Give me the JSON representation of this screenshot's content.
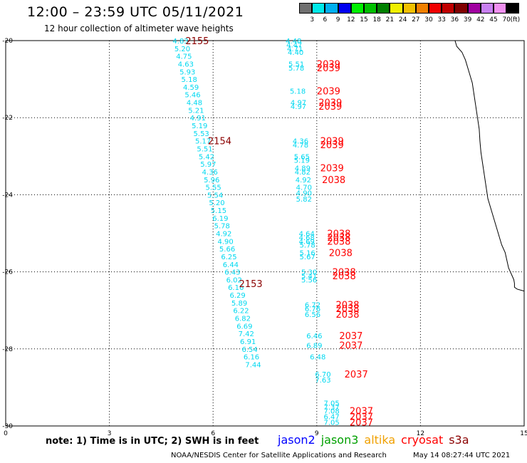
{
  "header": {
    "title": "12:00 – 23:59 UTC 05/11/2021",
    "subtitle": "12 hour collection of altimeter wave heights"
  },
  "colorbar": {
    "colors": [
      "#707070",
      "#00e8e8",
      "#00b0f0",
      "#0000f0",
      "#00f000",
      "#00c000",
      "#008000",
      "#f0f000",
      "#f0c000",
      "#f08000",
      "#f00000",
      "#c00000",
      "#800000",
      "#a000a0",
      "#c880f0",
      "#f090f0",
      "#000000"
    ],
    "labels": [
      "3",
      "6",
      "9",
      "12",
      "15",
      "18",
      "21",
      "24",
      "27",
      "30",
      "33",
      "36",
      "39",
      "42",
      "45",
      "70",
      "(ft)"
    ]
  },
  "footer": {
    "note": "note:  1) Time is in UTC;  2) SWH is in feet",
    "credit": "NOAA/NESDIS Center for Satellite Applications and Research",
    "timestamp": "May 14 08:27:44 UTC 2021"
  },
  "legend": [
    {
      "name": "jason2",
      "color": "#0000ff"
    },
    {
      "name": "jason3",
      "color": "#00a000"
    },
    {
      "name": "altika",
      "color": "#f0a000"
    },
    {
      "name": "cryosat",
      "color": "#ff0000"
    },
    {
      "name": "s3a",
      "color": "#8b0000"
    }
  ],
  "chart_data": {
    "type": "scatter",
    "xlim": [
      0,
      15
    ],
    "ylim": [
      -30,
      -20
    ],
    "x_ticks": [
      "0",
      "3",
      "6",
      "9",
      "12",
      "15"
    ],
    "y_ticks": [
      "-20",
      "-22",
      "-24",
      "-26",
      "-28",
      "-30"
    ],
    "grid": true,
    "label_color": "#00d8f0",
    "time_color_dark": "#8b0000",
    "time_color_bright": "#ff0000",
    "track_a": [
      {
        "x": 4.83,
        "y": -20.0,
        "v": "4.83"
      },
      {
        "x": 4.88,
        "y": -20.2,
        "v": "5.20"
      },
      {
        "x": 4.93,
        "y": -20.4,
        "v": "4.75"
      },
      {
        "x": 4.98,
        "y": -20.6,
        "v": "4.63"
      },
      {
        "x": 5.03,
        "y": -20.8,
        "v": "5.93"
      },
      {
        "x": 5.08,
        "y": -21.0,
        "v": "5.18"
      },
      {
        "x": 5.13,
        "y": -21.2,
        "v": "4.59"
      },
      {
        "x": 5.18,
        "y": -21.4,
        "v": "5.46"
      },
      {
        "x": 5.23,
        "y": -21.6,
        "v": "4.48"
      },
      {
        "x": 5.28,
        "y": -21.8,
        "v": "5.21"
      },
      {
        "x": 5.33,
        "y": -22.0,
        "v": "4.91"
      },
      {
        "x": 5.38,
        "y": -22.2,
        "v": "5.19"
      },
      {
        "x": 5.43,
        "y": -22.4,
        "v": "5.53"
      },
      {
        "x": 5.48,
        "y": -22.6,
        "v": "5.17"
      },
      {
        "x": 5.53,
        "y": -22.8,
        "v": "5.51"
      },
      {
        "x": 5.58,
        "y": -23.0,
        "v": "5.42"
      },
      {
        "x": 5.63,
        "y": -23.2,
        "v": "5.97"
      },
      {
        "x": 5.68,
        "y": -23.4,
        "v": "4.36"
      },
      {
        "x": 5.73,
        "y": -23.6,
        "v": "5.96"
      },
      {
        "x": 5.78,
        "y": -23.8,
        "v": "5.55"
      },
      {
        "x": 5.83,
        "y": -24.0,
        "v": "5.54"
      },
      {
        "x": 5.88,
        "y": -24.2,
        "v": "5.20"
      },
      {
        "x": 5.93,
        "y": -24.4,
        "v": "5.15"
      },
      {
        "x": 5.98,
        "y": -24.6,
        "v": "6.19"
      },
      {
        "x": 6.03,
        "y": -24.8,
        "v": "5.78"
      },
      {
        "x": 6.08,
        "y": -25.0,
        "v": "4.92"
      },
      {
        "x": 6.13,
        "y": -25.2,
        "v": "4.90"
      },
      {
        "x": 6.18,
        "y": -25.4,
        "v": "5.66"
      },
      {
        "x": 6.23,
        "y": -25.6,
        "v": "6.25"
      },
      {
        "x": 6.28,
        "y": -25.8,
        "v": "6.44"
      },
      {
        "x": 6.33,
        "y": -26.0,
        "v": "6.43"
      },
      {
        "x": 6.38,
        "y": -26.2,
        "v": "6.02"
      },
      {
        "x": 6.43,
        "y": -26.4,
        "v": "6.16"
      },
      {
        "x": 6.48,
        "y": -26.6,
        "v": "6.29"
      },
      {
        "x": 6.53,
        "y": -26.8,
        "v": "5.89"
      },
      {
        "x": 6.58,
        "y": -27.0,
        "v": "6.22"
      },
      {
        "x": 6.63,
        "y": -27.2,
        "v": "6.82"
      },
      {
        "x": 6.68,
        "y": -27.4,
        "v": "6.69"
      },
      {
        "x": 6.73,
        "y": -27.6,
        "v": "7.42"
      },
      {
        "x": 6.78,
        "y": -27.8,
        "v": "6.91"
      },
      {
        "x": 6.83,
        "y": -28.0,
        "v": "6.54"
      },
      {
        "x": 6.88,
        "y": -28.2,
        "v": "6.16"
      },
      {
        "x": 6.93,
        "y": -28.4,
        "v": "7.44"
      }
    ],
    "track_a_times": [
      {
        "x": 5.2,
        "y": -20.0,
        "t": "2155",
        "dark": true
      },
      {
        "x": 5.85,
        "y": -22.6,
        "t": "2154",
        "dark": true
      },
      {
        "x": 6.75,
        "y": -26.3,
        "t": "2153",
        "dark": true
      }
    ],
    "track_b": [
      {
        "x": 8.1,
        "y": -20.0,
        "v": "4.48"
      },
      {
        "x": 8.12,
        "y": -20.1,
        "v": "4.47"
      },
      {
        "x": 8.14,
        "y": -20.2,
        "v": "4.71"
      },
      {
        "x": 8.16,
        "y": -20.3,
        "v": "4.40"
      },
      {
        "x": 8.18,
        "y": -20.6,
        "v": "5.51"
      },
      {
        "x": 8.18,
        "y": -20.7,
        "v": "5.78"
      },
      {
        "x": 8.22,
        "y": -21.3,
        "v": "5.18"
      },
      {
        "x": 8.24,
        "y": -21.6,
        "v": "4.97"
      },
      {
        "x": 8.24,
        "y": -21.7,
        "v": "4.97"
      },
      {
        "x": 8.3,
        "y": -22.6,
        "v": "4.36"
      },
      {
        "x": 8.3,
        "y": -22.7,
        "v": "4.78"
      },
      {
        "x": 8.34,
        "y": -23.0,
        "v": "5.65"
      },
      {
        "x": 8.34,
        "y": -23.1,
        "v": "5.19"
      },
      {
        "x": 8.36,
        "y": -23.3,
        "v": "4.89"
      },
      {
        "x": 8.36,
        "y": -23.4,
        "v": "4.82"
      },
      {
        "x": 8.38,
        "y": -23.6,
        "v": "4.92"
      },
      {
        "x": 8.4,
        "y": -23.8,
        "v": "4.70"
      },
      {
        "x": 8.4,
        "y": -23.95,
        "v": "4.90"
      },
      {
        "x": 8.4,
        "y": -24.1,
        "v": "5.82"
      },
      {
        "x": 8.48,
        "y": -25.0,
        "v": "4.64"
      },
      {
        "x": 8.48,
        "y": -25.1,
        "v": "4.68"
      },
      {
        "x": 8.48,
        "y": -25.2,
        "v": "4.69"
      },
      {
        "x": 8.5,
        "y": -25.3,
        "v": "5.78"
      },
      {
        "x": 8.5,
        "y": -25.5,
        "v": "5.16"
      },
      {
        "x": 8.5,
        "y": -25.6,
        "v": "5.67"
      },
      {
        "x": 8.55,
        "y": -26.0,
        "v": "5.30"
      },
      {
        "x": 8.55,
        "y": -26.1,
        "v": "5.41"
      },
      {
        "x": 8.55,
        "y": -26.2,
        "v": "5.56"
      },
      {
        "x": 8.65,
        "y": -26.85,
        "v": "6.72"
      },
      {
        "x": 8.65,
        "y": -26.95,
        "v": "6.76"
      },
      {
        "x": 8.65,
        "y": -27.1,
        "v": "6.56"
      },
      {
        "x": 8.7,
        "y": -27.65,
        "v": "6.46"
      },
      {
        "x": 8.7,
        "y": -27.9,
        "v": "6.89"
      },
      {
        "x": 8.8,
        "y": -28.2,
        "v": "6.48"
      },
      {
        "x": 8.95,
        "y": -28.65,
        "v": "6.70"
      },
      {
        "x": 8.95,
        "y": -28.8,
        "v": "7.63"
      },
      {
        "x": 9.2,
        "y": -29.4,
        "v": "7.05"
      },
      {
        "x": 9.2,
        "y": -29.5,
        "v": "7.37"
      },
      {
        "x": 9.2,
        "y": -29.6,
        "v": "7.08"
      },
      {
        "x": 9.2,
        "y": -29.75,
        "v": "6.47"
      },
      {
        "x": 9.2,
        "y": -29.9,
        "v": "7.05"
      }
    ],
    "track_b_times": [
      {
        "x": 9.0,
        "y": -20.6,
        "t": "2039"
      },
      {
        "x": 9.0,
        "y": -20.7,
        "t": "2039"
      },
      {
        "x": 9.0,
        "y": -21.3,
        "t": "2039"
      },
      {
        "x": 9.05,
        "y": -21.6,
        "t": "2039"
      },
      {
        "x": 9.05,
        "y": -21.7,
        "t": "2039"
      },
      {
        "x": 9.1,
        "y": -22.6,
        "t": "2039"
      },
      {
        "x": 9.1,
        "y": -22.7,
        "t": "2039"
      },
      {
        "x": 9.1,
        "y": -23.3,
        "t": "2039"
      },
      {
        "x": 9.15,
        "y": -23.6,
        "t": "2038"
      },
      {
        "x": 9.3,
        "y": -25.0,
        "t": "2038"
      },
      {
        "x": 9.3,
        "y": -25.1,
        "t": "2038"
      },
      {
        "x": 9.3,
        "y": -25.2,
        "t": "2038"
      },
      {
        "x": 9.35,
        "y": -25.5,
        "t": "2038"
      },
      {
        "x": 9.45,
        "y": -26.0,
        "t": "2038"
      },
      {
        "x": 9.45,
        "y": -26.1,
        "t": "2038"
      },
      {
        "x": 9.55,
        "y": -26.85,
        "t": "2038"
      },
      {
        "x": 9.55,
        "y": -26.95,
        "t": "2038"
      },
      {
        "x": 9.55,
        "y": -27.1,
        "t": "2038"
      },
      {
        "x": 9.65,
        "y": -27.65,
        "t": "2037"
      },
      {
        "x": 9.65,
        "y": -27.9,
        "t": "2037"
      },
      {
        "x": 9.8,
        "y": -28.65,
        "t": "2037"
      },
      {
        "x": 9.95,
        "y": -29.6,
        "t": "2037"
      },
      {
        "x": 9.95,
        "y": -29.75,
        "t": "2037"
      },
      {
        "x": 9.95,
        "y": -29.9,
        "t": "2037"
      }
    ],
    "coastline": [
      [
        13.0,
        -20.0
      ],
      [
        13.05,
        -20.15
      ],
      [
        13.2,
        -20.3
      ],
      [
        13.3,
        -20.5
      ],
      [
        13.4,
        -20.8
      ],
      [
        13.5,
        -21.1
      ],
      [
        13.55,
        -21.4
      ],
      [
        13.6,
        -21.7
      ],
      [
        13.65,
        -22.0
      ],
      [
        13.7,
        -22.3
      ],
      [
        13.72,
        -22.6
      ],
      [
        13.75,
        -22.9
      ],
      [
        13.8,
        -23.2
      ],
      [
        13.85,
        -23.5
      ],
      [
        13.9,
        -23.8
      ],
      [
        13.95,
        -24.1
      ],
      [
        14.05,
        -24.4
      ],
      [
        14.15,
        -24.7
      ],
      [
        14.25,
        -25.0
      ],
      [
        14.35,
        -25.3
      ],
      [
        14.45,
        -25.5
      ],
      [
        14.5,
        -25.7
      ],
      [
        14.55,
        -25.9
      ],
      [
        14.6,
        -26.0
      ],
      [
        14.65,
        -26.1
      ],
      [
        14.7,
        -26.2
      ],
      [
        14.72,
        -26.3
      ],
      [
        14.72,
        -26.4
      ],
      [
        14.8,
        -26.45
      ],
      [
        15.0,
        -26.5
      ]
    ]
  }
}
